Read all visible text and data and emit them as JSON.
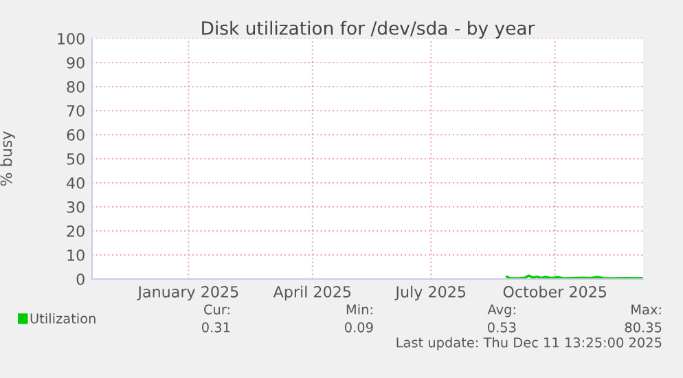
{
  "chart_data": {
    "type": "line",
    "title": "Disk utilization for /dev/sda - by year",
    "ylabel": "% busy",
    "x": [
      "2025-09-03",
      "2025-09-05",
      "2025-09-12",
      "2025-09-16",
      "2025-09-19",
      "2025-09-22",
      "2025-09-25",
      "2025-09-28",
      "2025-10-01",
      "2025-10-05",
      "2025-10-10",
      "2025-10-14",
      "2025-10-20",
      "2025-10-28",
      "2025-11-03",
      "2025-11-08",
      "2025-11-12",
      "2025-11-20",
      "2025-11-28",
      "2025-12-05",
      "2025-12-10"
    ],
    "series": [
      {
        "name": "Utilization",
        "color": "#00cc00",
        "values": [
          1.0,
          0.4,
          0.3,
          0.5,
          1.4,
          0.6,
          1.0,
          0.4,
          0.9,
          0.4,
          0.8,
          0.3,
          0.4,
          0.5,
          0.4,
          0.9,
          0.4,
          0.3,
          0.4,
          0.3,
          0.4
        ]
      }
    ],
    "xlim": [
      "2024-11-06",
      "2025-12-11"
    ],
    "xticks": [
      {
        "value": "2025-01-15",
        "label": "January 2025"
      },
      {
        "value": "2025-04-15",
        "label": "April 2025"
      },
      {
        "value": "2025-07-10",
        "label": "July 2025"
      },
      {
        "value": "2025-10-08",
        "label": "October 2025"
      }
    ],
    "ylim": [
      0,
      100
    ],
    "yticks": [
      0,
      10,
      20,
      30,
      40,
      50,
      60,
      70,
      80,
      90,
      100
    ],
    "grid": true,
    "legend": "bottom left",
    "annotations": [
      "Cur:",
      "Min:",
      "Avg:",
      "Max:",
      "0.31",
      "0.09",
      "0.53",
      "80.35",
      "Last update: Thu Dec 11 13:25:00 2025"
    ]
  }
}
